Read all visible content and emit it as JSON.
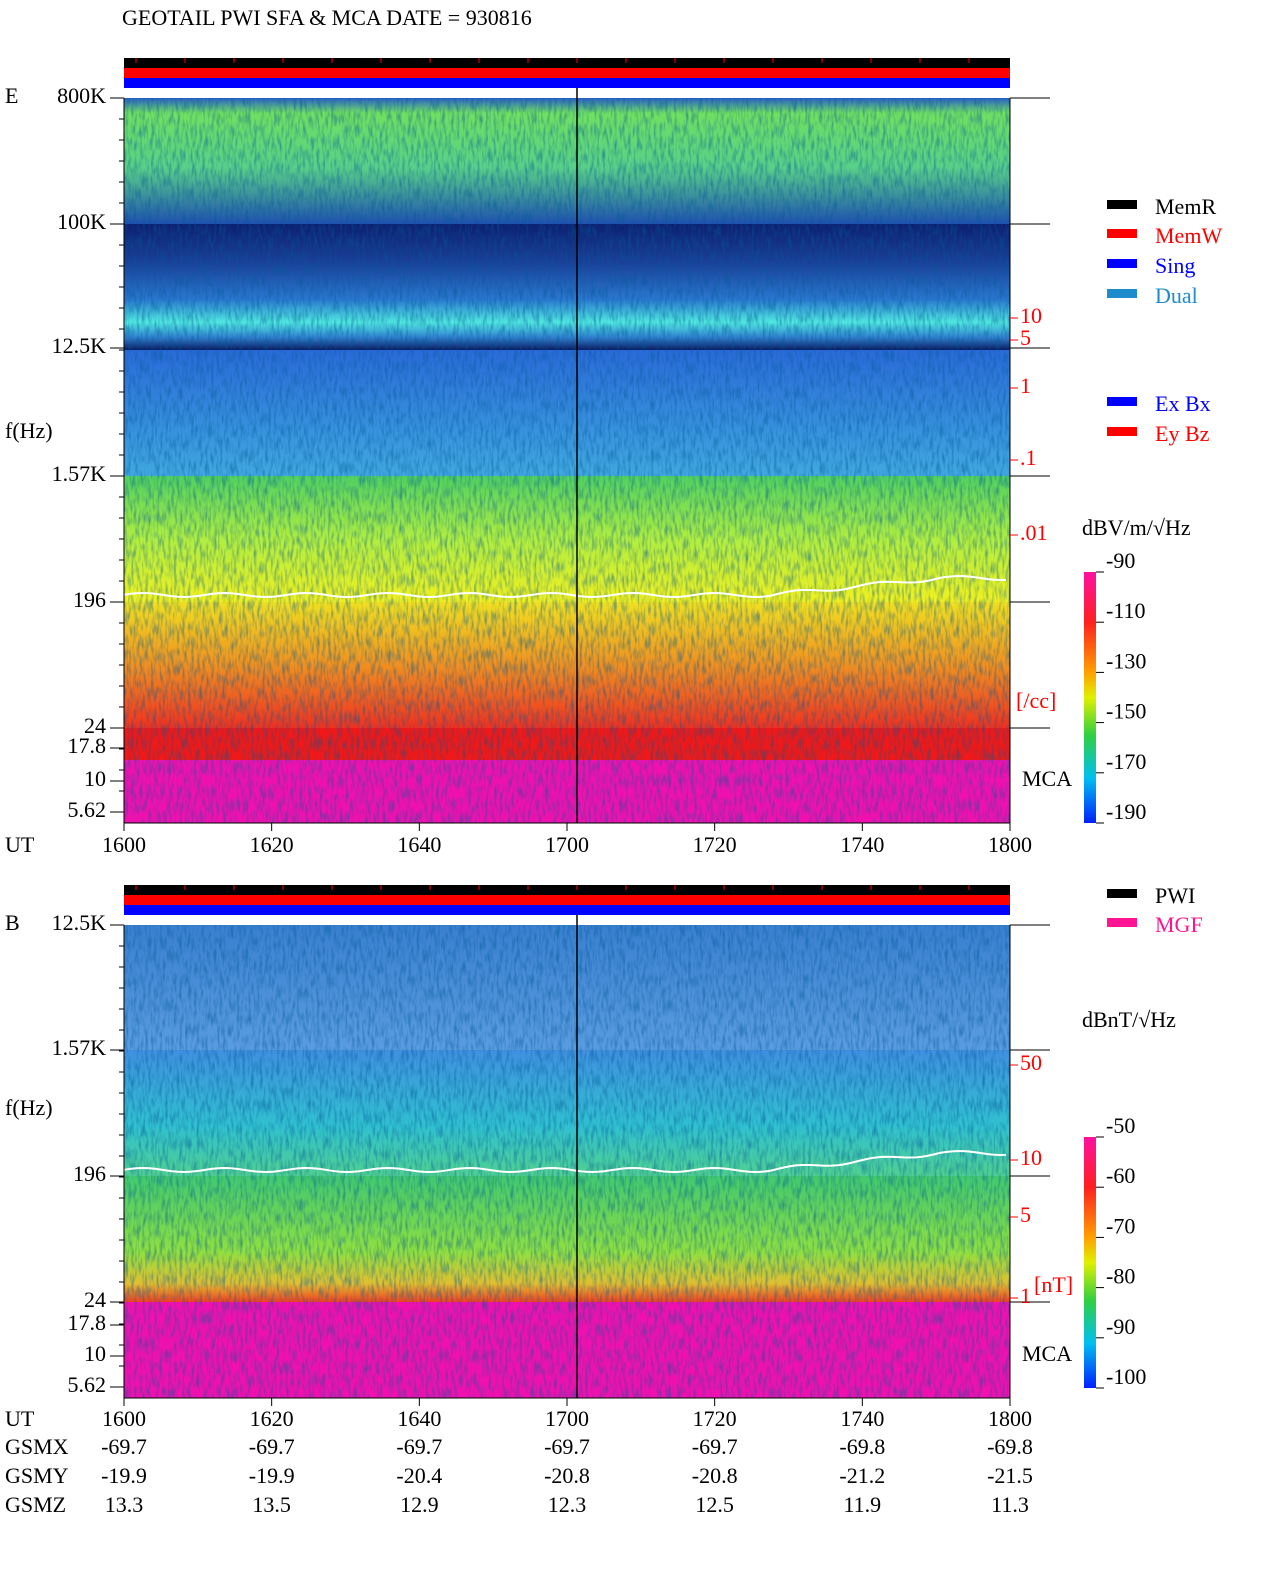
{
  "title": "GEOTAIL  PWI SFA & MCA   DATE = 930816",
  "panels": [
    {
      "label": "E",
      "ylabel": "f(Hz)",
      "yticks": [
        "800K",
        "100K",
        "12.5K",
        "1.57K",
        "196",
        "24",
        "17.8",
        "10",
        "5.62"
      ],
      "xlabel": "UT",
      "xticks": [
        "1600",
        "1620",
        "1640",
        "1700",
        "1720",
        "1740",
        "1800"
      ],
      "mca": "MCA",
      "cbar_label": "dBV/m/√Hz",
      "cbar_ticks": [
        -90,
        -110,
        -130,
        -150,
        -170,
        -190
      ],
      "density_ticks": [
        "10",
        "5",
        "1",
        ".1",
        ".01"
      ],
      "density_unit": "[/cc]",
      "legends": [
        [
          {
            "name": "MemR",
            "color": "#000000"
          },
          {
            "name": "MemW",
            "color": "#ff0000"
          },
          {
            "name": "Sing",
            "color": "#0000ff"
          },
          {
            "name": "Dual",
            "color": "#1e8ccc"
          }
        ],
        [
          {
            "name": "Ex Bx",
            "color": "#0000ff"
          },
          {
            "name": "Ey Bz",
            "color": "#ff0000"
          }
        ]
      ]
    },
    {
      "label": "B",
      "ylabel": "f(Hz)",
      "yticks": [
        "12.5K",
        "1.57K",
        "196",
        "24",
        "17.8",
        "10",
        "5.62"
      ],
      "xlabel": "UT",
      "xticks": [
        "1600",
        "1620",
        "1640",
        "1700",
        "1720",
        "1740",
        "1800"
      ],
      "mca": "MCA",
      "cbar_label": "dBnT/√Hz",
      "cbar_ticks": [
        -50,
        -60,
        -70,
        -80,
        -90,
        -100
      ],
      "density_ticks": [
        "50",
        "10",
        "5",
        "1"
      ],
      "density_unit": "[nT]",
      "legends": [
        [
          {
            "name": "PWI",
            "color": "#000000"
          },
          {
            "name": "MGF",
            "color": "#ff1493"
          }
        ]
      ]
    }
  ],
  "orbit": [
    {
      "name": "GSMX",
      "values": [
        -69.7,
        -69.7,
        -69.7,
        -69.7,
        -69.7,
        -69.8,
        -69.8
      ]
    },
    {
      "name": "GSMY",
      "values": [
        -19.9,
        -19.9,
        -20.4,
        -20.8,
        -20.8,
        -21.2,
        -21.5
      ]
    },
    {
      "name": "GSMZ",
      "values": [
        13.3,
        13.5,
        12.9,
        12.3,
        12.5,
        11.9,
        11.3
      ]
    }
  ]
}
